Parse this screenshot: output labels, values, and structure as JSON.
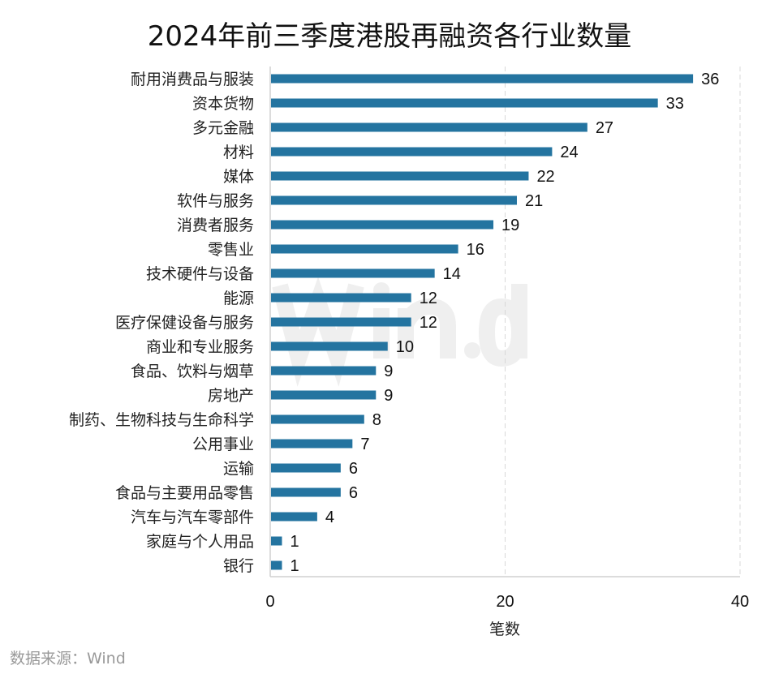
{
  "chart_data": {
    "type": "bar",
    "orientation": "horizontal",
    "title": "2024年前三季度港股再融资各行业数量",
    "xlabel": "笔数",
    "ylabel": "",
    "xlim": [
      0,
      40
    ],
    "xticks": [
      "0",
      "20",
      "40"
    ],
    "grid": "vertical dashed",
    "bar_color": "#2474a0",
    "categories": [
      "耐用消费品与服装",
      "资本货物",
      "多元金融",
      "材料",
      "媒体",
      "软件与服务",
      "消费者服务",
      "零售业",
      "技术硬件与设备",
      "能源",
      "医疗保健设备与服务",
      "商业和专业服务",
      "食品、饮料与烟草",
      "房地产",
      "制药、生物科技与生命科学",
      "公用事业",
      "运输",
      "食品与主要用品零售",
      "汽车与汽车零部件",
      "家庭与个人用品",
      "银行"
    ],
    "values": [
      36,
      33,
      27,
      24,
      22,
      21,
      19,
      16,
      14,
      12,
      12,
      10,
      9,
      9,
      8,
      7,
      6,
      6,
      4,
      1,
      1
    ],
    "source": "数据来源：Wind",
    "watermark": "Wind"
  }
}
